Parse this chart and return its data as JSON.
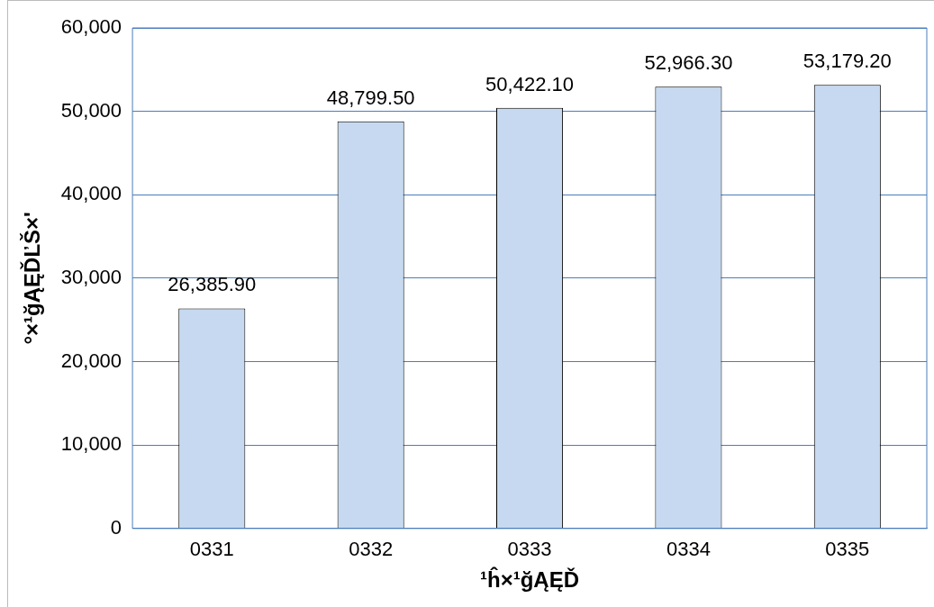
{
  "chart_data": {
    "type": "bar",
    "xlabel": "¹ĥ×¹ğĄĘĎ",
    "ylabel": "°×¹ğĄĘĎĽŠ×'",
    "categories": [
      "0331",
      "0332",
      "0333",
      "0334",
      "0335"
    ],
    "values": [
      26385.9,
      48799.5,
      50422.1,
      52966.3,
      53179.2
    ],
    "value_labels": [
      "26,385.90",
      "48,799.50",
      "50,422.10",
      "52,966.30",
      "53,179.20"
    ],
    "color": "#c6d9f0",
    "ylim": [
      0,
      60000
    ],
    "yticks": [
      {
        "value": 0,
        "label": "0"
      },
      {
        "value": 10000,
        "label": "10,000"
      },
      {
        "value": 20000,
        "label": "20,000"
      },
      {
        "value": 30000,
        "label": "30,000"
      },
      {
        "value": 40000,
        "label": "40,000"
      },
      {
        "value": 50000,
        "label": "50,000"
      },
      {
        "value": 60000,
        "label": "60,000"
      }
    ],
    "grid": "y",
    "legend": false
  }
}
